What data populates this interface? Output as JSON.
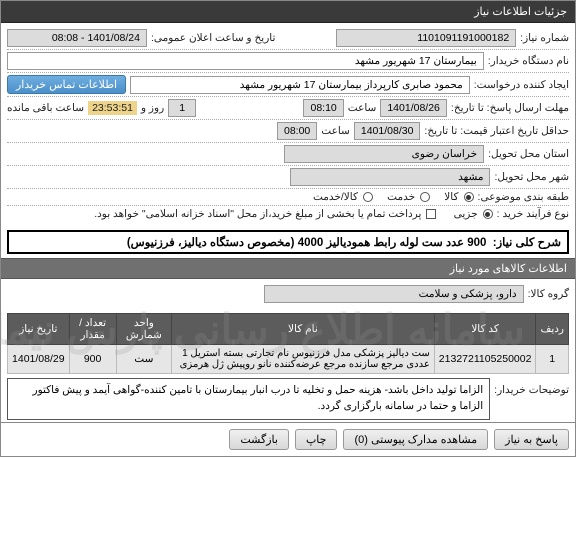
{
  "header": {
    "title": "جزئیات اطلاعات نیاز"
  },
  "info": {
    "req_no_lbl": "شماره نیاز:",
    "req_no": "1101091191000182",
    "pub_datetime_lbl": "تاریخ و ساعت اعلان عمومی:",
    "pub_datetime": "1401/08/24 - 08:08",
    "buyer_lbl": "نام دستگاه خریدار:",
    "buyer": "بیمارستان 17 شهریور مشهد",
    "creator_lbl": "ایجاد کننده درخواست:",
    "creator": "محمود صابری کارپرداز بیمارستان 17 شهریور مشهد",
    "contact_btn": "اطلاعات تماس خریدار",
    "resp_lbl": "مهلت ارسال پاسخ:  تا تاریخ:",
    "resp_date": "1401/08/26",
    "resp_time_lbl": "ساعت",
    "resp_time": "08:10",
    "resp_days_lbl": "روز و",
    "resp_days": "1",
    "remain_lbl": "ساعت باقی مانده",
    "remain_time": "23:53:51",
    "valid_lbl": "حداقل تاریخ اعتبار قیمت:  تا تاریخ:",
    "valid_date": "1401/08/30",
    "valid_time_lbl": "ساعت",
    "valid_time": "08:00",
    "prov_lbl": "استان محل تحویل:",
    "prov": "خراسان رضوی",
    "city_lbl": "شهر محل تحویل:",
    "city": "مشهد",
    "class_lbl": "طبقه بندی موضوعی:",
    "opt_goods": "کالا",
    "opt_service": "خدمت",
    "opt_both": "کالا/خدمت",
    "buy_type_lbl": "نوع فرآیند خرید :",
    "opt_partial": "جزیی",
    "buy_note": "پرداخت تمام یا بخشی از مبلغ خرید،از محل \"اسناد خزانه اسلامی\" خواهد بود."
  },
  "need": {
    "title_lbl": "شرح کلی نیاز:",
    "title": "900 عدد ست لوله رابط همودیالیز 4000 (مخصوص دستگاه دیالیز، فرزنیوس)"
  },
  "goods_hdr": "اطلاعات کالاهای مورد نیاز",
  "group_lbl": "گروه کالا:",
  "group": "دارو، پزشکی و سلامت",
  "watermark": "سامانه اطلاع رسانی پارس نیماد ۰۲۱-۸۸۳۴۸۲۰۵",
  "table": {
    "cols": [
      "ردیف",
      "کد کالا",
      "نام کالا",
      "واحد شمارش",
      "تعداد / مقدار",
      "تاریخ نیاز"
    ],
    "rows": [
      {
        "idx": "1",
        "code": "2132721105250002",
        "name": "ست دیالیز پزشکی مدل فرزنیوس نام تجارتی بسته استریل 1 عددی مرجع سازنده مرجع عرضه‌کننده نانو روپیش ژل هرمزی",
        "unit": "ست",
        "qty": "900",
        "date": "1401/08/29"
      }
    ]
  },
  "notes_lbl": "توضیحات خریدار:",
  "notes": "الزاما تولید داخل باشد- هزینه حمل و تخلیه تا درب انبار بیمارستان با تامین کننده-گواهی آیمد و پیش فاکتور الزاما و حتما در سامانه بارگزاری گردد.",
  "footer": {
    "reply": "پاسخ به نیاز",
    "attach": "مشاهده مدارک پیوستی (0)",
    "print": "چاپ",
    "back": "بازگشت"
  }
}
